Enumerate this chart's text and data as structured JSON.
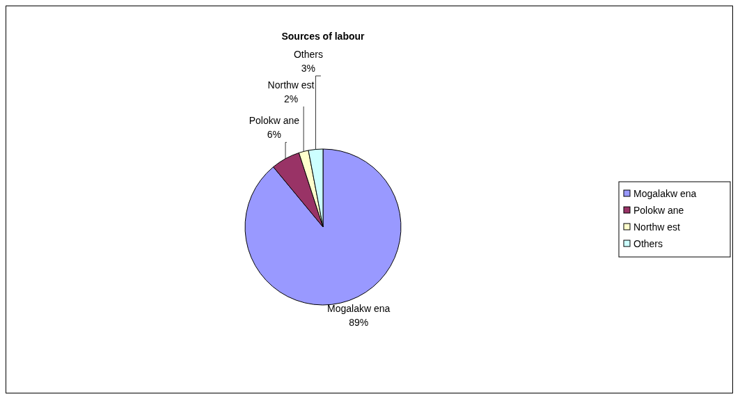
{
  "chart_data": {
    "type": "pie",
    "title": "Sources of labour",
    "categories": [
      "Mogalakw ena",
      "Polokw ane",
      "Northw est",
      "Others"
    ],
    "values": [
      89,
      6,
      2,
      3
    ],
    "value_labels": [
      "89%",
      "6%",
      "2%",
      "3%"
    ],
    "colors": [
      "#9999ff",
      "#993366",
      "#ffffcc",
      "#ccffff"
    ],
    "legend": "right"
  }
}
